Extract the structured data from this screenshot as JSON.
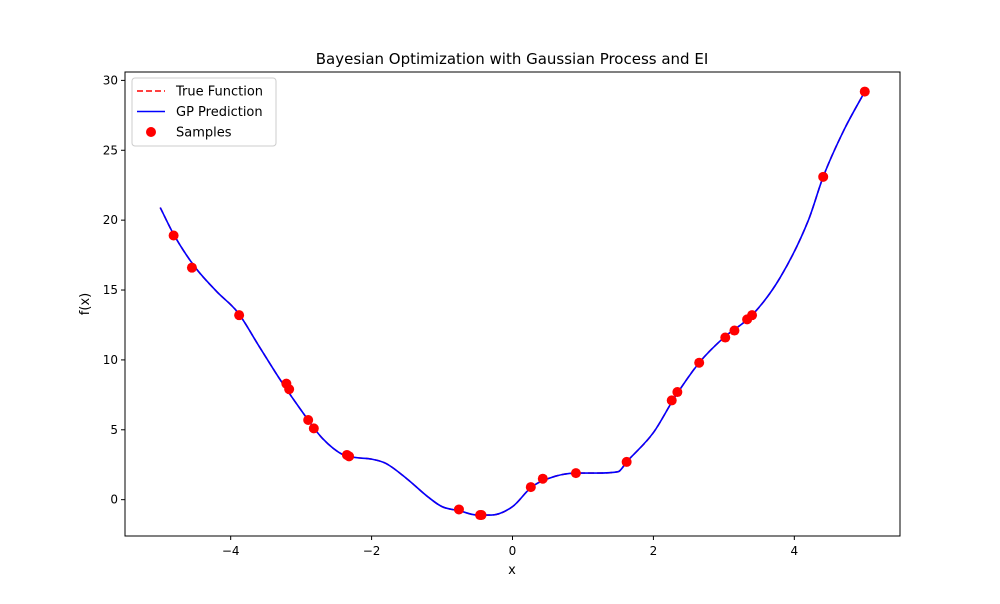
{
  "chart_data": {
    "type": "line",
    "title": "Bayesian Optimization with Gaussian Process and EI",
    "xlabel": "x",
    "ylabel": "f(x)",
    "xlim": [
      -5.5,
      5.5
    ],
    "ylim": [
      -2.6,
      30.6
    ],
    "xticks": [
      -4,
      -2,
      0,
      2,
      4
    ],
    "yticks": [
      0,
      5,
      10,
      15,
      20,
      25,
      30
    ],
    "grid": false,
    "legend_position": "top-left",
    "legend": [
      {
        "label": "True Function",
        "style": "dashed",
        "color": "#ff0000"
      },
      {
        "label": "GP Prediction",
        "style": "solid",
        "color": "#0000ff"
      },
      {
        "label": "Samples",
        "style": "marker",
        "color": "#ff0000"
      }
    ],
    "series": [
      {
        "name": "True Function",
        "style": "dashed",
        "color": "#ff0000",
        "x": [
          -5.0,
          -4.8,
          -4.5,
          -4.2,
          -3.9,
          -3.6,
          -3.3,
          -3.0,
          -2.7,
          -2.4,
          -2.2,
          -2.0,
          -1.8,
          -1.5,
          -1.2,
          -1.0,
          -0.75,
          -0.5,
          -0.3,
          0.0,
          0.27,
          0.5,
          0.9,
          1.2,
          1.5,
          1.62,
          2.0,
          2.3,
          2.65,
          3.0,
          3.4,
          3.8,
          4.2,
          4.41,
          4.7,
          5.0
        ],
        "y": [
          20.9,
          18.9,
          16.6,
          14.9,
          13.4,
          11.0,
          8.6,
          6.4,
          4.4,
          3.2,
          3.0,
          2.9,
          2.6,
          1.5,
          0.2,
          -0.5,
          -0.8,
          -1.1,
          -1.1,
          -0.5,
          0.9,
          1.5,
          1.9,
          1.9,
          2.0,
          2.7,
          4.8,
          7.3,
          9.8,
          11.6,
          13.2,
          15.9,
          20.0,
          23.1,
          26.4,
          29.2
        ]
      },
      {
        "name": "GP Prediction",
        "style": "solid",
        "color": "#0000ff",
        "x": [
          -5.0,
          -4.8,
          -4.5,
          -4.2,
          -3.9,
          -3.6,
          -3.3,
          -3.0,
          -2.7,
          -2.4,
          -2.2,
          -2.0,
          -1.8,
          -1.5,
          -1.2,
          -1.0,
          -0.75,
          -0.5,
          -0.3,
          0.0,
          0.27,
          0.5,
          0.9,
          1.2,
          1.5,
          1.62,
          2.0,
          2.3,
          2.65,
          3.0,
          3.4,
          3.8,
          4.2,
          4.41,
          4.7,
          5.0
        ],
        "y": [
          20.9,
          18.9,
          16.6,
          14.9,
          13.4,
          11.0,
          8.6,
          6.4,
          4.4,
          3.2,
          3.0,
          2.9,
          2.6,
          1.5,
          0.2,
          -0.5,
          -0.8,
          -1.1,
          -1.1,
          -0.5,
          0.9,
          1.5,
          1.9,
          1.9,
          2.0,
          2.7,
          4.8,
          7.3,
          9.8,
          11.6,
          13.2,
          15.9,
          20.0,
          23.1,
          26.4,
          29.2
        ]
      },
      {
        "name": "Samples",
        "style": "scatter",
        "color": "#ff0000",
        "x": [
          -4.81,
          -4.55,
          -3.88,
          -3.21,
          -3.17,
          -2.9,
          -2.82,
          -2.35,
          -2.32,
          -0.76,
          -0.46,
          -0.44,
          0.26,
          0.43,
          0.9,
          1.62,
          2.26,
          2.34,
          2.65,
          3.02,
          3.15,
          3.33,
          3.4,
          4.41,
          5.0
        ],
        "y": [
          18.9,
          16.6,
          13.2,
          8.3,
          7.9,
          5.7,
          5.1,
          3.2,
          3.1,
          -0.7,
          -1.1,
          -1.1,
          0.9,
          1.5,
          1.9,
          2.7,
          7.1,
          7.7,
          9.8,
          11.6,
          12.1,
          12.9,
          13.2,
          23.1,
          29.2
        ]
      }
    ]
  }
}
